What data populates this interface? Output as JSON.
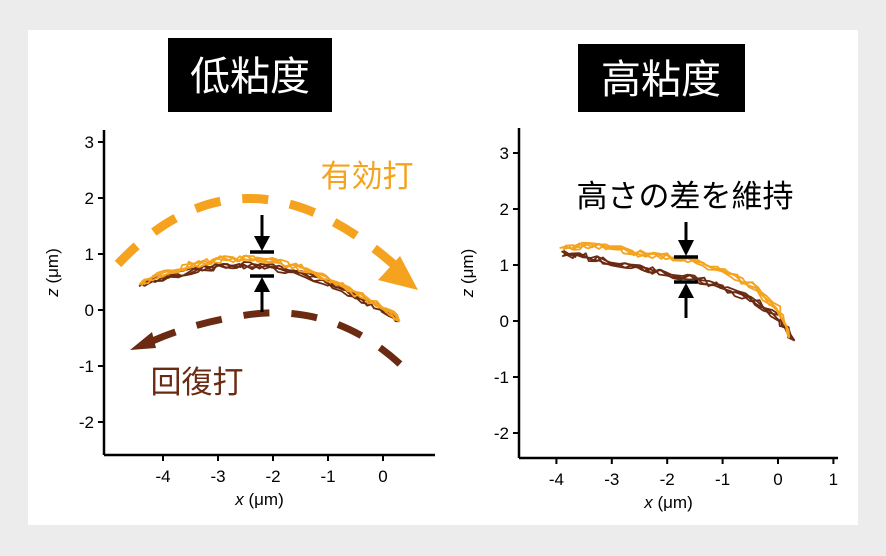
{
  "colors": {
    "orange": "#f5a31e",
    "brown": "#6b2a12",
    "title_bg": "#000000",
    "background": "#ececec",
    "panel": "#ffffff"
  },
  "chart_data": [
    {
      "type": "line",
      "title": "低粘度",
      "xlabel": "x (μm)",
      "ylabel": "z (μm)",
      "xlim": [
        -5.0,
        0.9
      ],
      "ylim": [
        -2.5,
        3.2
      ],
      "xticks": [
        "-4",
        "-3",
        "-2",
        "-1",
        "0"
      ],
      "yticks": [
        "3",
        "2",
        "1",
        "0",
        "-1",
        "-2"
      ],
      "grid": false,
      "annotations": {
        "effective_stroke": "有効打",
        "recovery_stroke": "回復打"
      },
      "series": [
        {
          "name": "有効打",
          "color": "#f5a31e",
          "points": [
            [
              -4.4,
              0.45
            ],
            [
              -4.0,
              0.65
            ],
            [
              -3.5,
              0.8
            ],
            [
              -3.0,
              0.9
            ],
            [
              -2.5,
              0.93
            ],
            [
              -2.0,
              0.88
            ],
            [
              -1.5,
              0.75
            ],
            [
              -1.0,
              0.55
            ],
            [
              -0.5,
              0.3
            ],
            [
              0.0,
              0.05
            ],
            [
              0.3,
              -0.2
            ]
          ]
        },
        {
          "name": "回復打",
          "color": "#6b2a12",
          "points": [
            [
              -4.4,
              0.45
            ],
            [
              -4.0,
              0.58
            ],
            [
              -3.5,
              0.7
            ],
            [
              -3.0,
              0.78
            ],
            [
              -2.5,
              0.8
            ],
            [
              -2.0,
              0.76
            ],
            [
              -1.5,
              0.65
            ],
            [
              -1.0,
              0.48
            ],
            [
              -0.5,
              0.25
            ],
            [
              0.0,
              0.0
            ],
            [
              0.3,
              -0.2
            ]
          ]
        }
      ]
    },
    {
      "type": "line",
      "title": "高粘度",
      "xlabel": "x (μm)",
      "ylabel": "z (μm)",
      "xlim": [
        -4.6,
        1.1
      ],
      "ylim": [
        -2.5,
        3.3
      ],
      "xticks": [
        "-4",
        "-3",
        "-2",
        "-1",
        "0",
        "1"
      ],
      "yticks": [
        "3",
        "2",
        "1",
        "0",
        "-1",
        "-2"
      ],
      "grid": false,
      "annotations": {
        "height_gap": "高さの差を維持"
      },
      "series": [
        {
          "name": "有効打",
          "color": "#f5a31e",
          "points": [
            [
              -3.9,
              1.3
            ],
            [
              -3.5,
              1.35
            ],
            [
              -3.0,
              1.3
            ],
            [
              -2.5,
              1.2
            ],
            [
              -2.0,
              1.15
            ],
            [
              -1.5,
              1.05
            ],
            [
              -1.0,
              0.9
            ],
            [
              -0.5,
              0.65
            ],
            [
              0.0,
              0.2
            ],
            [
              0.2,
              -0.3
            ]
          ]
        },
        {
          "name": "回復打",
          "color": "#6b2a12",
          "points": [
            [
              -3.9,
              1.2
            ],
            [
              -3.5,
              1.15
            ],
            [
              -3.0,
              1.05
            ],
            [
              -2.5,
              0.95
            ],
            [
              -2.0,
              0.85
            ],
            [
              -1.5,
              0.75
            ],
            [
              -1.0,
              0.6
            ],
            [
              -0.5,
              0.4
            ],
            [
              0.0,
              0.05
            ],
            [
              0.3,
              -0.35
            ]
          ]
        }
      ]
    }
  ]
}
